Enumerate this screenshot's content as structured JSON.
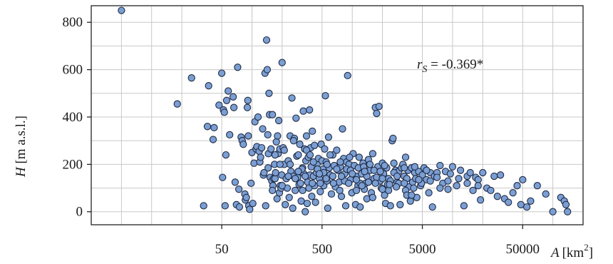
{
  "chart_data": {
    "type": "scatter",
    "xscale": "log",
    "xlim": [
      2.5,
      200000
    ],
    "ylim": [
      -55,
      870
    ],
    "grid": true,
    "x_ticks": [
      50,
      500,
      5000,
      50000
    ],
    "x_tick_labels": [
      "50",
      "500",
      "5000",
      "50000"
    ],
    "y_ticks": [
      0,
      200,
      400,
      600,
      800
    ],
    "y_tick_labels": [
      "0",
      "200",
      "400",
      "600",
      "800"
    ],
    "xlabel": {
      "var": "A",
      "unit": "[km",
      "exp": "2",
      "close": "]"
    },
    "ylabel": {
      "var": "H",
      "unit": " [m a.s.l.]"
    },
    "annotation": {
      "var": "r",
      "sub": "S",
      "text": " = -0.369*"
    },
    "colors": {
      "point_fill": "#7b9fd3",
      "point_stroke": "#1f2a44",
      "grid": "#c8c8c8",
      "axis": "#222222"
    },
    "points": [
      [
        5,
        850
      ],
      [
        18,
        455
      ],
      [
        25,
        565
      ],
      [
        33,
        25
      ],
      [
        36,
        360
      ],
      [
        37,
        532
      ],
      [
        41,
        305
      ],
      [
        42,
        355
      ],
      [
        47,
        450
      ],
      [
        50,
        585
      ],
      [
        51,
        145
      ],
      [
        52,
        430
      ],
      [
        53,
        420
      ],
      [
        54,
        25
      ],
      [
        55,
        240
      ],
      [
        56,
        470
      ],
      [
        58,
        510
      ],
      [
        60,
        325
      ],
      [
        65,
        485
      ],
      [
        66,
        440
      ],
      [
        68,
        125
      ],
      [
        70,
        30
      ],
      [
        72,
        610
      ],
      [
        74,
        95
      ],
      [
        75,
        20
      ],
      [
        78,
        315
      ],
      [
        80,
        300
      ],
      [
        82,
        285
      ],
      [
        85,
        75
      ],
      [
        86,
        50
      ],
      [
        88,
        60
      ],
      [
        90,
        440
      ],
      [
        91,
        470
      ],
      [
        92,
        320
      ],
      [
        93,
        25
      ],
      [
        95,
        10
      ],
      [
        98,
        120
      ],
      [
        100,
        250
      ],
      [
        102,
        35
      ],
      [
        105,
        205
      ],
      [
        107,
        380
      ],
      [
        110,
        265
      ],
      [
        112,
        275
      ],
      [
        115,
        400
      ],
      [
        118,
        255
      ],
      [
        120,
        210
      ],
      [
        122,
        230
      ],
      [
        125,
        270
      ],
      [
        128,
        350
      ],
      [
        130,
        155
      ],
      [
        132,
        165
      ],
      [
        135,
        585
      ],
      [
        137,
        25
      ],
      [
        140,
        725
      ],
      [
        142,
        600
      ],
      [
        144,
        325
      ],
      [
        146,
        245
      ],
      [
        148,
        500
      ],
      [
        150,
        410
      ],
      [
        152,
        145
      ],
      [
        155,
        265
      ],
      [
        158,
        130
      ],
      [
        160,
        410
      ],
      [
        162,
        110
      ],
      [
        165,
        140
      ],
      [
        168,
        200
      ],
      [
        170,
        140
      ],
      [
        172,
        165
      ],
      [
        175,
        295
      ],
      [
        178,
        55
      ],
      [
        180,
        320
      ],
      [
        182,
        245
      ],
      [
        185,
        385
      ],
      [
        188,
        80
      ],
      [
        190,
        265
      ],
      [
        192,
        110
      ],
      [
        195,
        100
      ],
      [
        198,
        155
      ],
      [
        200,
        630
      ],
      [
        205,
        270
      ],
      [
        210,
        200
      ],
      [
        215,
        30
      ],
      [
        220,
        140
      ],
      [
        225,
        100
      ],
      [
        230,
        215
      ],
      [
        235,
        60
      ],
      [
        240,
        320
      ],
      [
        245,
        170
      ],
      [
        250,
        480
      ],
      [
        255,
        15
      ],
      [
        260,
        150
      ],
      [
        265,
        310
      ],
      [
        270,
        90
      ],
      [
        275,
        395
      ],
      [
        280,
        235
      ],
      [
        285,
        145
      ],
      [
        290,
        240
      ],
      [
        295,
        115
      ],
      [
        300,
        285
      ],
      [
        305,
        120
      ],
      [
        310,
        45
      ],
      [
        315,
        170
      ],
      [
        320,
        185
      ],
      [
        325,
        425
      ],
      [
        330,
        160
      ],
      [
        335,
        265
      ],
      [
        340,
        0
      ],
      [
        345,
        215
      ],
      [
        350,
        320
      ],
      [
        355,
        35
      ],
      [
        360,
        125
      ],
      [
        365,
        230
      ],
      [
        370,
        100
      ],
      [
        375,
        430
      ],
      [
        380,
        155
      ],
      [
        385,
        270
      ],
      [
        390,
        190
      ],
      [
        395,
        65
      ],
      [
        400,
        340
      ],
      [
        410,
        150
      ],
      [
        420,
        110
      ],
      [
        430,
        40
      ],
      [
        440,
        165
      ],
      [
        450,
        205
      ],
      [
        460,
        225
      ],
      [
        470,
        140
      ],
      [
        480,
        85
      ],
      [
        490,
        285
      ],
      [
        500,
        215
      ],
      [
        510,
        180
      ],
      [
        520,
        110
      ],
      [
        530,
        265
      ],
      [
        540,
        490
      ],
      [
        550,
        210
      ],
      [
        560,
        130
      ],
      [
        570,
        15
      ],
      [
        580,
        315
      ],
      [
        590,
        185
      ],
      [
        600,
        155
      ],
      [
        620,
        75
      ],
      [
        640,
        240
      ],
      [
        660,
        195
      ],
      [
        680,
        105
      ],
      [
        700,
        260
      ],
      [
        720,
        175
      ],
      [
        740,
        125
      ],
      [
        760,
        190
      ],
      [
        780,
        65
      ],
      [
        800,
        350
      ],
      [
        820,
        225
      ],
      [
        840,
        160
      ],
      [
        860,
        25
      ],
      [
        880,
        210
      ],
      [
        900,
        575
      ],
      [
        930,
        200
      ],
      [
        960,
        135
      ],
      [
        990,
        80
      ],
      [
        1020,
        245
      ],
      [
        1050,
        195
      ],
      [
        1080,
        30
      ],
      [
        1110,
        150
      ],
      [
        1140,
        110
      ],
      [
        1170,
        230
      ],
      [
        1200,
        20
      ],
      [
        1240,
        160
      ],
      [
        1280,
        205
      ],
      [
        1320,
        95
      ],
      [
        1360,
        120
      ],
      [
        1400,
        55
      ],
      [
        1450,
        220
      ],
      [
        1500,
        175
      ],
      [
        1550,
        80
      ],
      [
        1600,
        245
      ],
      [
        1650,
        140
      ],
      [
        1700,
        440
      ],
      [
        1750,
        415
      ],
      [
        1800,
        190
      ],
      [
        1850,
        445
      ],
      [
        1900,
        130
      ],
      [
        1950,
        100
      ],
      [
        2000,
        205
      ],
      [
        2050,
        160
      ],
      [
        2100,
        70
      ],
      [
        2150,
        35
      ],
      [
        2200,
        185
      ],
      [
        2250,
        115
      ],
      [
        2300,
        140
      ],
      [
        2400,
        25
      ],
      [
        2500,
        300
      ],
      [
        2550,
        310
      ],
      [
        2600,
        205
      ],
      [
        2700,
        175
      ],
      [
        2800,
        125
      ],
      [
        2900,
        170
      ],
      [
        3000,
        30
      ],
      [
        3100,
        185
      ],
      [
        3200,
        200
      ],
      [
        3300,
        150
      ],
      [
        3400,
        230
      ],
      [
        3500,
        140
      ],
      [
        3600,
        175
      ],
      [
        3700,
        105
      ],
      [
        3800,
        45
      ],
      [
        3900,
        185
      ],
      [
        4000,
        125
      ],
      [
        4200,
        165
      ],
      [
        4400,
        60
      ],
      [
        4600,
        170
      ],
      [
        4800,
        110
      ],
      [
        5000,
        155
      ],
      [
        5200,
        185
      ],
      [
        5500,
        135
      ],
      [
        5800,
        80
      ],
      [
        6000,
        165
      ],
      [
        6300,
        20
      ],
      [
        6600,
        150
      ],
      [
        7000,
        165
      ],
      [
        7500,
        195
      ],
      [
        8000,
        120
      ],
      [
        8500,
        170
      ],
      [
        9000,
        95
      ],
      [
        9500,
        160
      ],
      [
        10000,
        190
      ],
      [
        11000,
        110
      ],
      [
        12000,
        175
      ],
      [
        13000,
        25
      ],
      [
        14000,
        150
      ],
      [
        15000,
        165
      ],
      [
        16000,
        90
      ],
      [
        17000,
        145
      ],
      [
        18000,
        135
      ],
      [
        19000,
        50
      ],
      [
        20000,
        165
      ],
      [
        22000,
        100
      ],
      [
        24000,
        90
      ],
      [
        26000,
        150
      ],
      [
        28000,
        65
      ],
      [
        30000,
        155
      ],
      [
        33000,
        55
      ],
      [
        36000,
        40
      ],
      [
        40000,
        80
      ],
      [
        44000,
        110
      ],
      [
        48000,
        30
      ],
      [
        50000,
        135
      ],
      [
        55000,
        20
      ],
      [
        60000,
        45
      ],
      [
        70000,
        110
      ],
      [
        85000,
        75
      ],
      [
        100000,
        0
      ],
      [
        120000,
        60
      ],
      [
        130000,
        45
      ],
      [
        135000,
        30
      ],
      [
        140000,
        0
      ],
      [
        315,
        180
      ],
      [
        270,
        140
      ],
      [
        410,
        210
      ],
      [
        520,
        165
      ],
      [
        640,
        150
      ],
      [
        760,
        210
      ],
      [
        880,
        180
      ],
      [
        960,
        175
      ],
      [
        1150,
        185
      ],
      [
        1300,
        190
      ],
      [
        1500,
        200
      ],
      [
        1750,
        145
      ],
      [
        2100,
        195
      ],
      [
        2600,
        165
      ],
      [
        3300,
        185
      ],
      [
        4200,
        190
      ],
      [
        5500,
        175
      ],
      [
        7000,
        145
      ],
      [
        9000,
        130
      ],
      [
        11500,
        140
      ],
      [
        14000,
        120
      ],
      [
        18000,
        110
      ],
      [
        230,
        150
      ],
      [
        190,
        200
      ],
      [
        145,
        185
      ],
      [
        160,
        90
      ],
      [
        210,
        260
      ],
      [
        260,
        300
      ],
      [
        350,
        260
      ],
      [
        420,
        280
      ],
      [
        480,
        120
      ],
      [
        560,
        200
      ],
      [
        700,
        180
      ],
      [
        840,
        130
      ],
      [
        1000,
        160
      ],
      [
        1200,
        120
      ],
      [
        1400,
        150
      ],
      [
        1650,
        175
      ],
      [
        2000,
        140
      ],
      [
        2400,
        130
      ],
      [
        2900,
        120
      ],
      [
        3400,
        90
      ],
      [
        4100,
        100
      ],
      [
        4900,
        120
      ],
      [
        6000,
        130
      ],
      [
        7500,
        100
      ],
      [
        320,
        90
      ],
      [
        380,
        240
      ],
      [
        450,
        180
      ],
      [
        600,
        240
      ],
      [
        750,
        90
      ],
      [
        940,
        230
      ],
      [
        1100,
        90
      ],
      [
        1330,
        170
      ],
      [
        1600,
        60
      ],
      [
        1900,
        170
      ],
      [
        2300,
        90
      ],
      [
        2800,
        150
      ],
      [
        3500,
        70
      ],
      [
        4300,
        140
      ],
      [
        170,
        240
      ],
      [
        200,
        110
      ],
      [
        240,
        200
      ],
      [
        290,
        170
      ],
      [
        340,
        150
      ],
      [
        400,
        120
      ],
      [
        470,
        160
      ],
      [
        550,
        140
      ],
      [
        650,
        120
      ],
      [
        780,
        150
      ],
      [
        920,
        120
      ],
      [
        1100,
        135
      ],
      [
        1250,
        110
      ],
      [
        1450,
        125
      ],
      [
        1700,
        120
      ],
      [
        2000,
        95
      ],
      [
        2350,
        115
      ],
      [
        2750,
        105
      ],
      [
        3300,
        120
      ],
      [
        3900,
        70
      ],
      [
        4600,
        135
      ]
    ]
  }
}
